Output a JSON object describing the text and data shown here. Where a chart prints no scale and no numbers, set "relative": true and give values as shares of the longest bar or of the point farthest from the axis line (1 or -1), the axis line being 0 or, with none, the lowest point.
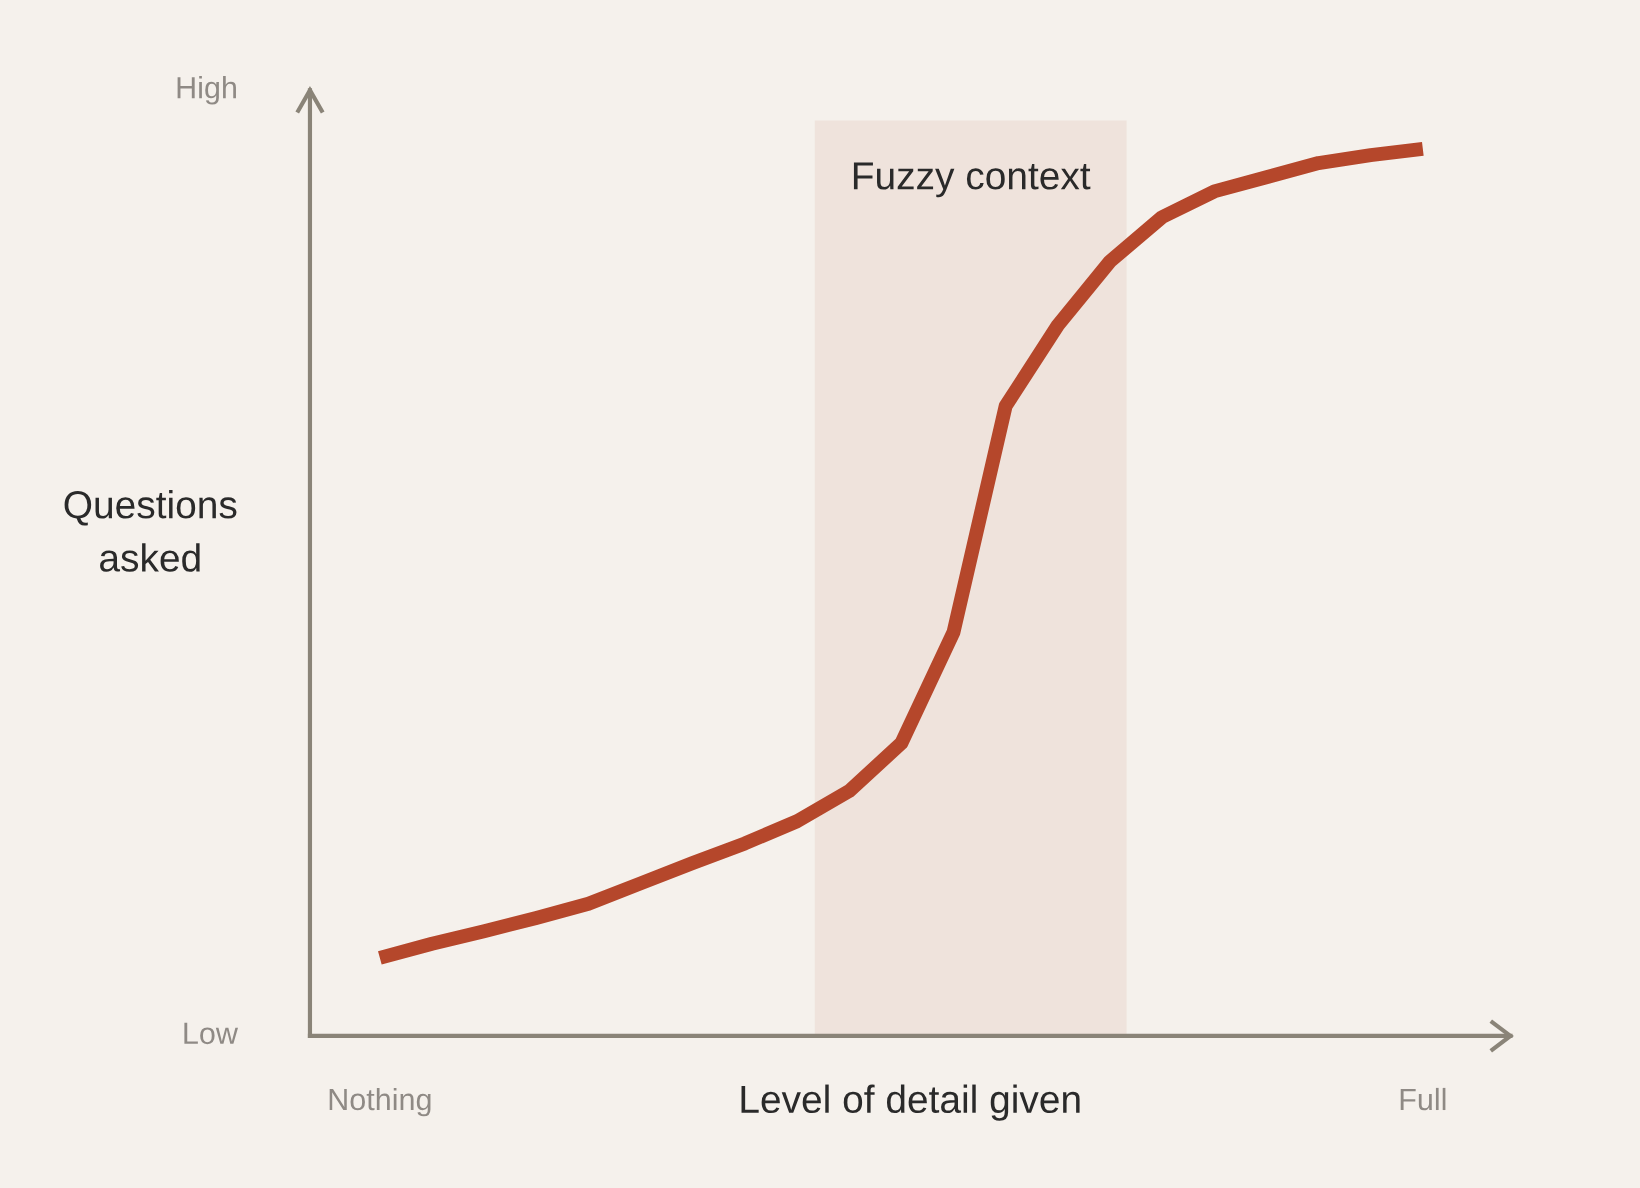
{
  "chart_data": {
    "type": "line",
    "relative": true,
    "xlabel": "Level of detail given",
    "ylabel": "Questions\nasked",
    "categories": [
      null,
      null,
      null,
      null,
      null,
      null,
      null,
      null,
      null,
      null,
      null,
      null,
      null,
      null,
      null,
      null,
      null,
      null,
      null,
      null,
      null
    ],
    "series": [
      {
        "color": "#b5472b",
        "values": [
          0.088,
          0.104,
          0.118,
          0.133,
          0.149,
          0.172,
          0.195,
          0.217,
          0.242,
          0.276,
          0.33,
          0.455,
          0.71,
          0.801,
          0.873,
          0.923,
          0.952,
          0.968,
          0.984,
          0.993,
          1.0
        ]
      }
    ],
    "annotations": [
      "Low",
      "High",
      "Nothing",
      "Full",
      "Fuzzy context"
    ],
    "grid": false,
    "marker": "none",
    "line_style": "solid"
  }
}
